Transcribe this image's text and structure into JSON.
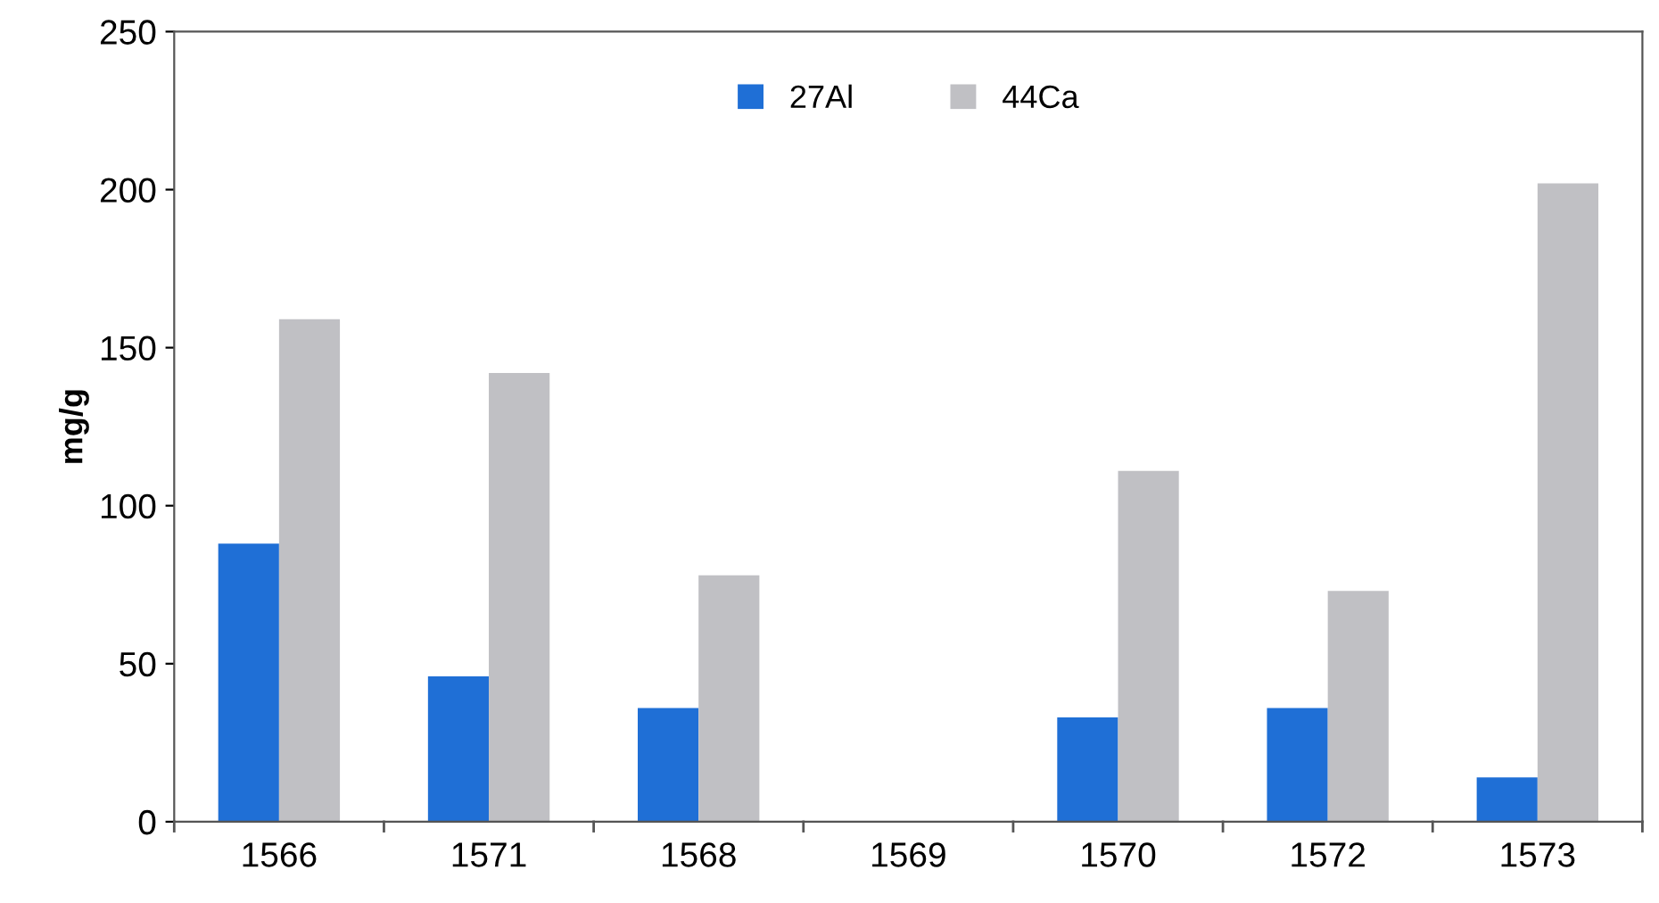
{
  "chart_data": {
    "type": "bar",
    "ylabel": "mg/g",
    "categories": [
      "1566",
      "1571",
      "1568",
      "1569",
      "1570",
      "1572",
      "1573"
    ],
    "series": [
      {
        "name": "27Al",
        "color": "#1f6fd6",
        "values": [
          88,
          46,
          36,
          0,
          33,
          36,
          14
        ]
      },
      {
        "name": "44Ca",
        "color": "#c0c0c4",
        "values": [
          159,
          142,
          78,
          0,
          111,
          73,
          202
        ]
      }
    ],
    "ylim": [
      0,
      250
    ],
    "yticks": [
      0,
      50,
      100,
      150,
      200,
      250
    ],
    "grid": false,
    "legend": "top"
  }
}
